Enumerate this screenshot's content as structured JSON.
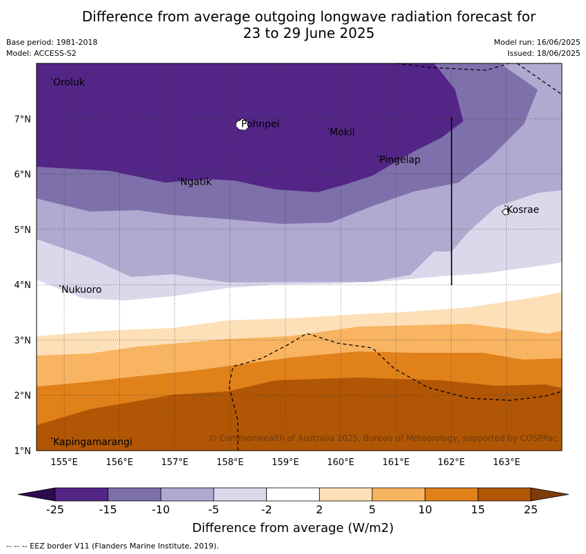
{
  "title_line1": "Difference from average outgoing longwave radiation forecast for",
  "title_line2": "23 to 29 June 2025",
  "base_period": "Base period: 1981-2018",
  "model": "Model: ACCESS-S2",
  "model_run": "Model run: 16/06/2025",
  "issued": "Issued: 18/06/2025",
  "copyright": "© Commonwealth of Australia 2025, Bureau of Meteorology, supported by COSPPac",
  "colorbar_label": "Difference from average (W/m2)",
  "footer": "--  --  -- EEZ border V11 (Flanders Marine Institute, 2019).",
  "x_ticks": [
    "155°E",
    "156°E",
    "157°E",
    "158°E",
    "159°E",
    "160°E",
    "161°E",
    "162°E",
    "163°E"
  ],
  "y_ticks": [
    "7°N",
    "6°N",
    "5°N",
    "4°N",
    "3°N",
    "2°N",
    "1°N"
  ],
  "colorbar_ticks": [
    "-25",
    "-15",
    "-10",
    "-5",
    "-2",
    "2",
    "5",
    "10",
    "15",
    "25"
  ],
  "colorbar_colors": [
    "#522586",
    "#7e70aa",
    "#b0a9d0",
    "#d9d9eb",
    "#ffffff",
    "#fde0b8",
    "#f9b461",
    "#e0811a",
    "#b15605"
  ],
  "colorbar_extend_colors": {
    "low": "#2d0a4f",
    "high": "#7f3b08"
  },
  "places": [
    {
      "name": "Oroluk",
      "lon": 154.8,
      "lat": 7.6
    },
    {
      "name": "Pohnpei",
      "lon": 158.2,
      "lat": 6.85
    },
    {
      "name": "Mokil",
      "lon": 159.8,
      "lat": 6.7
    },
    {
      "name": "Pingelap",
      "lon": 160.7,
      "lat": 6.2
    },
    {
      "name": "Ngatik",
      "lon": 157.1,
      "lat": 5.8
    },
    {
      "name": "Kosrae",
      "lon": 163.0,
      "lat": 5.3
    },
    {
      "name": "Nukuoro",
      "lon": 154.95,
      "lat": 3.85
    },
    {
      "name": "Kapingamarangi",
      "lon": 154.8,
      "lat": 1.1
    }
  ],
  "map_extent": {
    "lon": [
      154.5,
      164.0
    ],
    "lat": [
      1.0,
      8.0
    ]
  }
}
